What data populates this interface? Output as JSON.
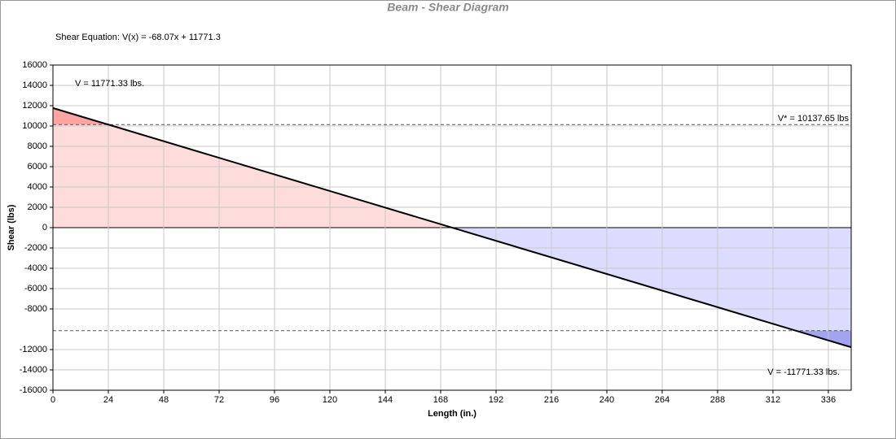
{
  "chart_data": {
    "type": "line",
    "title": "Beam - Shear Diagram",
    "equation": "Shear Equation:  V(x) = -68.07x + 11771.3",
    "x_label": "Length (in.)",
    "y_label": "Shear (lbs)",
    "x": [
      0,
      345.9
    ],
    "series": [
      {
        "name": "Shear",
        "color": "#000000",
        "values": [
          11771.33,
          -11771.33
        ]
      }
    ],
    "positive_fill": "#ffdcdc",
    "positive_exceed_fill": "#ffa3a3",
    "negative_fill": "#dcdcff",
    "negative_exceed_fill": "#a3a3f0",
    "limits": [
      10137.65,
      -10137.65
    ],
    "limit_label": "V* = 10137.65 lbs",
    "start_label": "V = 11771.33 lbs.",
    "end_label": "V = -11771.33 lbs.",
    "xlim": [
      0,
      345.9
    ],
    "xticks": [
      0,
      24,
      48,
      72,
      96,
      120,
      144,
      168,
      192,
      216,
      240,
      264,
      288,
      312,
      336
    ],
    "ylim": [
      -16000,
      16000
    ],
    "yticks": [
      16000,
      14000,
      12000,
      10000,
      8000,
      6000,
      4000,
      2000,
      0,
      -2000,
      -4000,
      -6000,
      -8000,
      -12000,
      -14000,
      -16000
    ],
    "grid": true
  }
}
